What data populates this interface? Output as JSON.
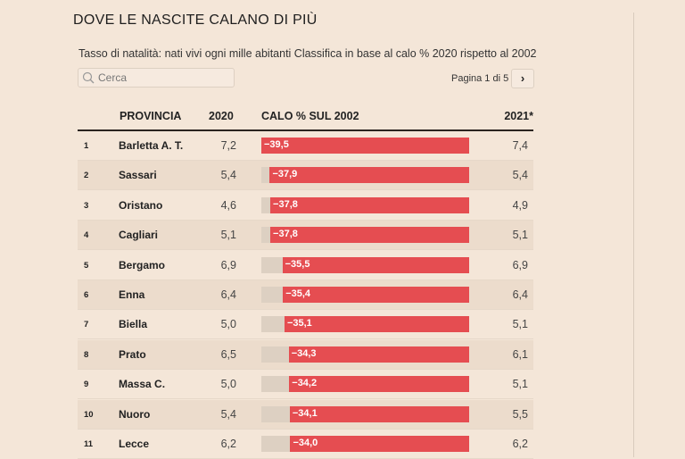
{
  "title": "DOVE LE NASCITE CALANO DI PIÙ",
  "subtitle": "Tasso di natalità: nati vivi ogni mille abitanti Classifica in base al calo % 2020 rispetto al 2002",
  "search": {
    "placeholder": "Cerca",
    "icon": "search-icon"
  },
  "pagination": {
    "label": "Pagina 1 di 5",
    "next_icon": "chevron-right-icon"
  },
  "columns": {
    "provincia": "PROVINCIA",
    "y2020": "2020",
    "calo": "CALO % SUL 2002",
    "y2021": "2021*"
  },
  "colors": {
    "bar": "#e54d51",
    "track": "#ddd0c2",
    "background": "#f4e6d8"
  },
  "rows": [
    {
      "rank": "1",
      "provincia": "Barletta A. T.",
      "y2020": "7,2",
      "calo": "−39,5",
      "calo_value": -39.5,
      "y2021": "7,4"
    },
    {
      "rank": "2",
      "provincia": "Sassari",
      "y2020": "5,4",
      "calo": "−37,9",
      "calo_value": -37.9,
      "y2021": "5,4"
    },
    {
      "rank": "3",
      "provincia": "Oristano",
      "y2020": "4,6",
      "calo": "−37,8",
      "calo_value": -37.8,
      "y2021": "4,9"
    },
    {
      "rank": "4",
      "provincia": "Cagliari",
      "y2020": "5,1",
      "calo": "−37,8",
      "calo_value": -37.8,
      "y2021": "5,1"
    },
    {
      "rank": "5",
      "provincia": "Bergamo",
      "y2020": "6,9",
      "calo": "−35,5",
      "calo_value": -35.5,
      "y2021": "6,9"
    },
    {
      "rank": "6",
      "provincia": "Enna",
      "y2020": "6,4",
      "calo": "−35,4",
      "calo_value": -35.4,
      "y2021": "6,4"
    },
    {
      "rank": "7",
      "provincia": "Biella",
      "y2020": "5,0",
      "calo": "−35,1",
      "calo_value": -35.1,
      "y2021": "5,1"
    },
    {
      "rank": "8",
      "provincia": "Prato",
      "y2020": "6,5",
      "calo": "−34,3",
      "calo_value": -34.3,
      "y2021": "6,1"
    },
    {
      "rank": "9",
      "provincia": "Massa C.",
      "y2020": "5,0",
      "calo": "−34,2",
      "calo_value": -34.2,
      "y2021": "5,1"
    },
    {
      "rank": "10",
      "provincia": "Nuoro",
      "y2020": "5,4",
      "calo": "−34,1",
      "calo_value": -34.1,
      "y2021": "5,5"
    },
    {
      "rank": "11",
      "provincia": "Lecce",
      "y2020": "6,2",
      "calo": "−34,0",
      "calo_value": -34.0,
      "y2021": "6,2"
    }
  ]
}
